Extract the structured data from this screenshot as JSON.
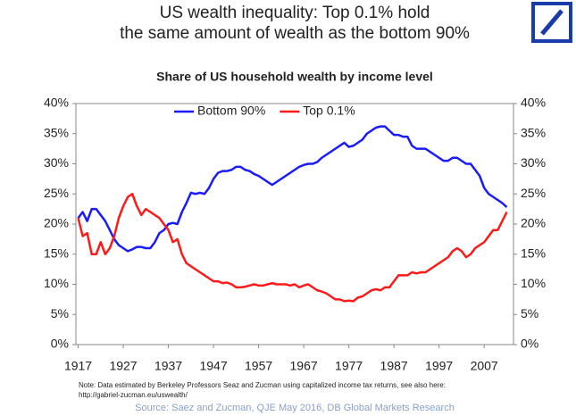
{
  "chart_data": {
    "type": "line",
    "title": [
      "US wealth inequality: Top 0.1% hold",
      "the same amount of wealth as the bottom 90%"
    ],
    "subtitle": "Share of US household wealth by income level",
    "note": [
      "Note: Data estimated by Berkeley Professors Seaz and Zucman using capitalized income tax returns, see also here:",
      "http://gabriel-zucman.eu/uswealth/"
    ],
    "source": "Source: Saez and Zucman, QJE May 2016, DB Global Markets Research",
    "x": [
      1917,
      1918,
      1919,
      1920,
      1921,
      1922,
      1923,
      1924,
      1925,
      1926,
      1927,
      1928,
      1929,
      1930,
      1931,
      1932,
      1933,
      1934,
      1935,
      1936,
      1937,
      1938,
      1939,
      1940,
      1941,
      1942,
      1943,
      1944,
      1945,
      1946,
      1947,
      1948,
      1949,
      1950,
      1951,
      1952,
      1953,
      1954,
      1955,
      1956,
      1957,
      1958,
      1959,
      1960,
      1961,
      1962,
      1963,
      1964,
      1965,
      1966,
      1967,
      1968,
      1969,
      1970,
      1971,
      1972,
      1973,
      1974,
      1975,
      1976,
      1977,
      1978,
      1979,
      1980,
      1981,
      1982,
      1983,
      1984,
      1985,
      1986,
      1987,
      1988,
      1989,
      1990,
      1991,
      1992,
      1993,
      1994,
      1995,
      1996,
      1997,
      1998,
      1999,
      2000,
      2001,
      2002,
      2003,
      2004,
      2005,
      2006,
      2007,
      2008,
      2009,
      2010,
      2011,
      2012
    ],
    "series": [
      {
        "name": "Bottom 90%",
        "color": "#1a1aff",
        "values": [
          21,
          22,
          20.5,
          22.5,
          22.5,
          21.5,
          20.5,
          19,
          17.5,
          16.5,
          16,
          15.5,
          15.8,
          16.2,
          16.2,
          16,
          16,
          17,
          18.5,
          19,
          20,
          20.2,
          20,
          22,
          23.5,
          25.2,
          25,
          25.2,
          25,
          26,
          27.5,
          28.5,
          28.8,
          28.8,
          29,
          29.5,
          29.5,
          29,
          28.8,
          28.3,
          28,
          27.5,
          27,
          26.5,
          27,
          27.5,
          28,
          28.5,
          29,
          29.5,
          29.8,
          30,
          30,
          30.3,
          31,
          31.5,
          32,
          32.5,
          33,
          33.5,
          32.8,
          33,
          33.5,
          34,
          35,
          35.5,
          36,
          36.2,
          36.2,
          35.5,
          34.8,
          34.8,
          34.5,
          34.5,
          33,
          32.5,
          32.5,
          32.5,
          32,
          31.5,
          31,
          30.5,
          30.5,
          31,
          31,
          30.5,
          30,
          30,
          29,
          28,
          26,
          25,
          24.5,
          24,
          23.5,
          22.8
        ]
      },
      {
        "name": "Top 0.1%",
        "color": "#ff1a1a",
        "values": [
          21,
          18,
          18.5,
          15,
          15,
          17,
          15,
          16,
          18,
          21,
          23,
          24.5,
          25,
          23,
          21.5,
          22.5,
          22,
          21.5,
          21,
          20,
          19,
          17,
          17.5,
          15,
          13.5,
          13,
          12.5,
          12,
          11.5,
          11,
          10.5,
          10.5,
          10.2,
          10.3,
          10,
          9.5,
          9.5,
          9.6,
          9.8,
          10,
          9.8,
          9.8,
          10,
          10.2,
          10,
          10,
          10,
          9.8,
          10,
          9.5,
          9.8,
          10,
          9.5,
          9,
          8.8,
          8.5,
          8,
          7.5,
          7.5,
          7.2,
          7.3,
          7.2,
          7.8,
          8,
          8.5,
          9,
          9.2,
          9,
          9.5,
          9.5,
          10.5,
          11.5,
          11.5,
          11.5,
          12,
          11.8,
          12,
          12,
          12.5,
          13,
          13.5,
          14,
          14.5,
          15.5,
          16,
          15.5,
          14.5,
          15,
          16,
          16.5,
          17,
          18,
          19,
          19,
          20.5,
          22
        ]
      }
    ],
    "xlim": [
      1916.5,
      2013.5
    ],
    "xticks": [
      1917,
      1927,
      1937,
      1947,
      1957,
      1967,
      1977,
      1987,
      1997,
      2007
    ],
    "ylim": [
      0,
      40
    ],
    "yticks": [
      {
        "value": 0,
        "label": "0%"
      },
      {
        "value": 5,
        "label": "5%"
      },
      {
        "value": 10,
        "label": "10%"
      },
      {
        "value": 15,
        "label": "15%"
      },
      {
        "value": 20,
        "label": "20%"
      },
      {
        "value": 25,
        "label": "25%"
      },
      {
        "value": 30,
        "label": "30%"
      },
      {
        "value": 35,
        "label": "35%"
      },
      {
        "value": 40,
        "label": "40%"
      }
    ],
    "y2lim": [
      0,
      40
    ],
    "y2ticks": [
      {
        "value": 0,
        "label": "0%"
      },
      {
        "value": 5,
        "label": "5%"
      },
      {
        "value": 10,
        "label": "10%"
      },
      {
        "value": 15,
        "label": "15%"
      },
      {
        "value": 20,
        "label": "20%"
      },
      {
        "value": 25,
        "label": "25%"
      },
      {
        "value": 30,
        "label": "30%"
      },
      {
        "value": 35,
        "label": "35%"
      },
      {
        "value": 40,
        "label": "40%"
      }
    ],
    "legend": "top"
  }
}
